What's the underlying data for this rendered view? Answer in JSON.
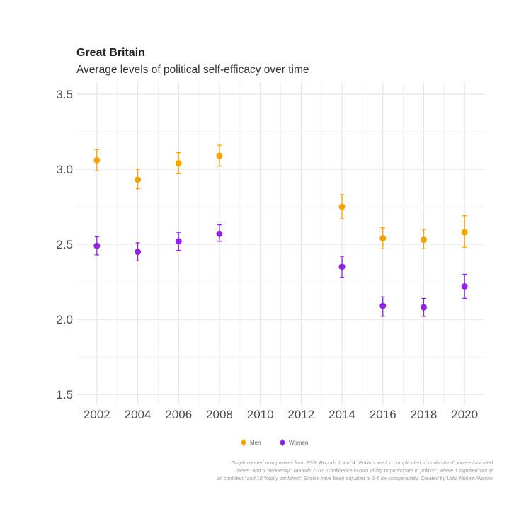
{
  "chart_data": {
    "type": "scatter",
    "title": "Great Britain",
    "subtitle": "Average levels of political self-efficacy over time",
    "x_ticks": [
      2002,
      2004,
      2006,
      2008,
      2010,
      2012,
      2014,
      2016,
      2018,
      2020
    ],
    "y_ticks": [
      "1.5",
      "2.0",
      "2.5",
      "3.0",
      "3.5"
    ],
    "xlim": [
      2001,
      2021
    ],
    "ylim": [
      1.43,
      3.58
    ],
    "grid": true,
    "legend_position": "bottom",
    "error_bars": true,
    "series": [
      {
        "name": "Men",
        "color": "#F5A300",
        "points": [
          {
            "x": 2002,
            "y": 3.06,
            "lo": 2.99,
            "hi": 3.13
          },
          {
            "x": 2004,
            "y": 2.93,
            "lo": 2.87,
            "hi": 3.0
          },
          {
            "x": 2006,
            "y": 3.04,
            "lo": 2.97,
            "hi": 3.11
          },
          {
            "x": 2008,
            "y": 3.09,
            "lo": 3.02,
            "hi": 3.16
          },
          {
            "x": 2014,
            "y": 2.75,
            "lo": 2.67,
            "hi": 2.83
          },
          {
            "x": 2016,
            "y": 2.54,
            "lo": 2.47,
            "hi": 2.61
          },
          {
            "x": 2018,
            "y": 2.53,
            "lo": 2.47,
            "hi": 2.6
          },
          {
            "x": 2020,
            "y": 2.58,
            "lo": 2.48,
            "hi": 2.69
          }
        ]
      },
      {
        "name": "Women",
        "color": "#8E24E0",
        "points": [
          {
            "x": 2002,
            "y": 2.49,
            "lo": 2.43,
            "hi": 2.55
          },
          {
            "x": 2004,
            "y": 2.45,
            "lo": 2.39,
            "hi": 2.51
          },
          {
            "x": 2006,
            "y": 2.52,
            "lo": 2.46,
            "hi": 2.58
          },
          {
            "x": 2008,
            "y": 2.57,
            "lo": 2.52,
            "hi": 2.63
          },
          {
            "x": 2014,
            "y": 2.35,
            "lo": 2.28,
            "hi": 2.42
          },
          {
            "x": 2016,
            "y": 2.09,
            "lo": 2.02,
            "hi": 2.15
          },
          {
            "x": 2018,
            "y": 2.08,
            "lo": 2.02,
            "hi": 2.14
          },
          {
            "x": 2020,
            "y": 2.22,
            "lo": 2.14,
            "hi": 2.3
          }
        ]
      }
    ]
  },
  "caption": {
    "lines": [
      "Graph created using waves from ESS. Rounds 1 and 4: 'Politics are too complicated to understand', where indicated",
      "'never' and 5 'frequently'. Rounds 7-10: 'Confidence in own ability to participate in politics', where 1 signified 'not at",
      "all confident' and 10 'totally confident'. Scales have been adjusted to 1-5 for comparability. Created by Lidia Núñez-Alarcón"
    ]
  }
}
